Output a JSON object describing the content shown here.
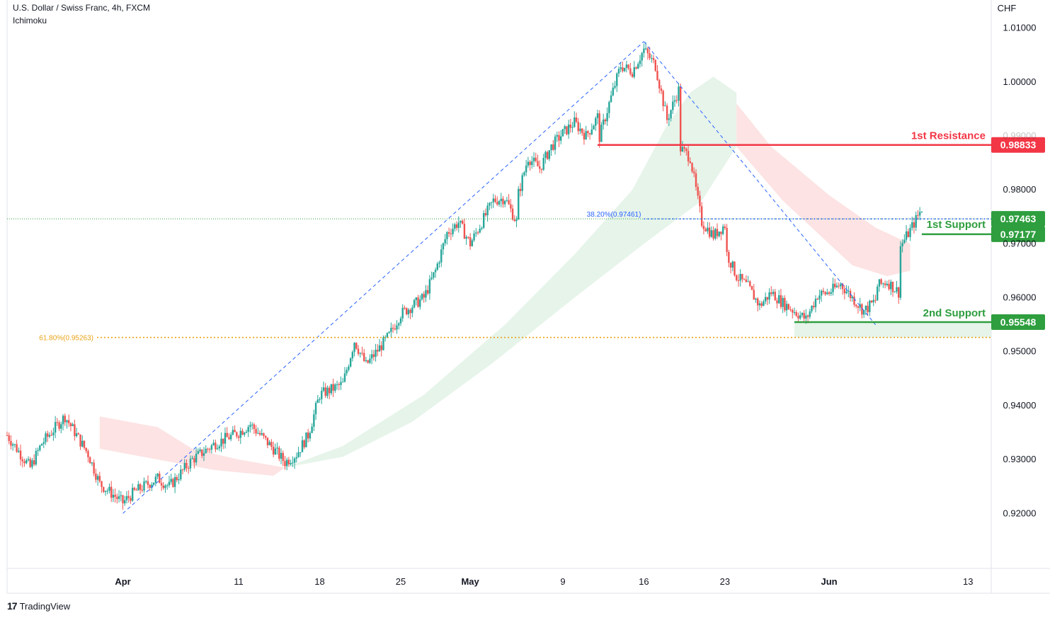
{
  "header": {
    "symbol_line": "U.S. Dollar / Swiss Franc, 4h, FXCM",
    "indicator": "Ichimoku"
  },
  "branding": {
    "logo": "17",
    "name": "TradingView"
  },
  "colors": {
    "up": "#26a69a",
    "down": "#ef5350",
    "resistance": "#f23645",
    "support": "#2e9e3e",
    "fib_blue": "#2962ff",
    "fib_orange": "#e8a317",
    "cloud_green": "#e6f4ea",
    "cloud_red": "#fde3e3"
  },
  "chart_data": {
    "type": "candlestick",
    "title": "U.S. Dollar / Swiss Franc, 4h, FXCM",
    "y_axis_label": "CHF",
    "ylim": [
      0.9098,
      1.0152
    ],
    "y_ticks": [
      "1.01000",
      "1.00000",
      "0.99000",
      "0.98000",
      "0.97000",
      "0.96000",
      "0.95000",
      "0.94000",
      "0.93000",
      "0.92000"
    ],
    "y_tick_values": [
      1.01,
      1.0,
      0.99,
      0.98,
      0.97,
      0.96,
      0.95,
      0.94,
      0.93,
      0.92
    ],
    "x_ticks": [
      "Apr",
      "11",
      "18",
      "25",
      "May",
      "9",
      "16",
      "23",
      "Jun",
      "13"
    ],
    "x_tick_dates": [
      "2022-04-01",
      "2022-04-11",
      "2022-04-18",
      "2022-04-25",
      "2022-05-01",
      "2022-05-09",
      "2022-05-16",
      "2022-05-23",
      "2022-06-01",
      "2022-06-13"
    ],
    "x_range": [
      "2022-03-22",
      "2022-06-15"
    ],
    "price_path": [
      [
        "2022-03-22",
        0.9345
      ],
      [
        "2022-03-24",
        0.9285
      ],
      [
        "2022-03-25",
        0.933
      ],
      [
        "2022-03-27",
        0.938
      ],
      [
        "2022-03-29",
        0.931
      ],
      [
        "2022-03-30",
        0.9255
      ],
      [
        "2022-04-01",
        0.922
      ],
      [
        "2022-04-02",
        0.924
      ],
      [
        "2022-04-04",
        0.9265
      ],
      [
        "2022-04-05",
        0.925
      ],
      [
        "2022-04-07",
        0.93
      ],
      [
        "2022-04-09",
        0.933
      ],
      [
        "2022-04-11",
        0.935
      ],
      [
        "2022-04-12",
        0.9365
      ],
      [
        "2022-04-14",
        0.932
      ],
      [
        "2022-04-15",
        0.9295
      ],
      [
        "2022-04-16",
        0.931
      ],
      [
        "2022-04-17",
        0.9345
      ],
      [
        "2022-04-18",
        0.942
      ],
      [
        "2022-04-20",
        0.944
      ],
      [
        "2022-04-21",
        0.952
      ],
      [
        "2022-04-22",
        0.9475
      ],
      [
        "2022-04-24",
        0.953
      ],
      [
        "2022-04-25",
        0.957
      ],
      [
        "2022-04-27",
        0.96
      ],
      [
        "2022-04-28",
        0.965
      ],
      [
        "2022-04-29",
        0.972
      ],
      [
        "2022-04-30",
        0.974
      ],
      [
        "2022-05-01",
        0.97
      ],
      [
        "2022-05-02",
        0.974
      ],
      [
        "2022-05-03",
        0.978
      ],
      [
        "2022-05-04",
        0.9785
      ],
      [
        "2022-05-05",
        0.974
      ],
      [
        "2022-05-05",
        0.978
      ],
      [
        "2022-05-06",
        0.986
      ],
      [
        "2022-05-07",
        0.984
      ],
      [
        "2022-05-08",
        0.988
      ],
      [
        "2022-05-09",
        0.9905
      ],
      [
        "2022-05-10",
        0.9925
      ],
      [
        "2022-05-11",
        0.99
      ],
      [
        "2022-05-12",
        0.9935
      ],
      [
        "2022-05-12",
        0.9885
      ],
      [
        "2022-05-13",
        0.996
      ],
      [
        "2022-05-14",
        1.003
      ],
      [
        "2022-05-15",
        1.002
      ],
      [
        "2022-05-16",
        1.006
      ],
      [
        "2022-05-17",
        1.003
      ],
      [
        "2022-05-18",
        0.993
      ],
      [
        "2022-05-19",
        0.9985
      ],
      [
        "2022-05-19",
        0.988
      ],
      [
        "2022-05-20",
        0.986
      ],
      [
        "2022-05-21",
        0.974
      ],
      [
        "2022-05-22",
        0.9715
      ],
      [
        "2022-05-23",
        0.9735
      ],
      [
        "2022-05-23",
        0.969
      ],
      [
        "2022-05-24",
        0.964
      ],
      [
        "2022-05-25",
        0.962
      ],
      [
        "2022-05-26",
        0.9585
      ],
      [
        "2022-05-27",
        0.961
      ],
      [
        "2022-05-28",
        0.959
      ],
      [
        "2022-05-29",
        0.9575
      ],
      [
        "2022-05-30",
        0.956
      ],
      [
        "2022-05-31",
        0.9605
      ],
      [
        "2022-06-01",
        0.961
      ],
      [
        "2022-06-02",
        0.9625
      ],
      [
        "2022-06-03",
        0.96
      ],
      [
        "2022-06-04",
        0.9575
      ],
      [
        "2022-06-05",
        0.9595
      ],
      [
        "2022-06-05",
        0.962
      ],
      [
        "2022-06-06",
        0.963
      ],
      [
        "2022-06-07",
        0.961
      ],
      [
        "2022-06-07",
        0.969
      ],
      [
        "2022-06-08",
        0.9725
      ],
      [
        "2022-06-09",
        0.9765
      ],
      [
        "2022-06-09",
        0.9735
      ]
    ],
    "levels": [
      {
        "name": "1st Resistance",
        "value": 0.98833,
        "label": "0.98833",
        "kind": "resistance",
        "from": "2022-05-12"
      },
      {
        "name": "1st Support",
        "value": 0.97177,
        "label": "0.97177",
        "kind": "support",
        "from": "2022-06-09"
      },
      {
        "name": "2nd Support",
        "value": 0.95548,
        "label": "0.95548",
        "kind": "support",
        "from": "2022-05-29"
      }
    ],
    "current_price": {
      "value": 0.97463,
      "label": "0.97463"
    },
    "fib_levels": [
      {
        "label": "38.20%(0.97461)",
        "value": 0.97461
      },
      {
        "label": "61.80%(0.95263)",
        "value": 0.95263
      }
    ],
    "trend_lines": [
      [
        [
          "2022-04-01",
          0.92
        ],
        [
          "2022-05-16",
          1.0075
        ]
      ],
      [
        [
          "2022-05-16",
          1.0075
        ],
        [
          "2022-06-05",
          0.955
        ]
      ]
    ],
    "cloud_green": [
      [
        "2022-04-15",
        0.9285
      ],
      [
        "2022-04-20",
        0.9325
      ],
      [
        "2022-04-27",
        0.942
      ],
      [
        "2022-05-04",
        0.955
      ],
      [
        "2022-05-10",
        0.968
      ],
      [
        "2022-05-15",
        0.98
      ],
      [
        "2022-05-18",
        0.992
      ],
      [
        "2022-05-20",
        0.998
      ],
      [
        "2022-05-22",
        1.001
      ],
      [
        "2022-05-24",
        0.998
      ],
      [
        "2022-05-24",
        0.988
      ],
      [
        "2022-05-21",
        0.978
      ],
      [
        "2022-05-16",
        0.97
      ],
      [
        "2022-05-10",
        0.96
      ],
      [
        "2022-05-03",
        0.948
      ],
      [
        "2022-04-26",
        0.937
      ],
      [
        "2022-04-20",
        0.9305
      ],
      [
        "2022-04-15",
        0.9285
      ]
    ],
    "cloud_red": [
      [
        "2022-03-30",
        0.938
      ],
      [
        "2022-04-04",
        0.936
      ],
      [
        "2022-04-07",
        0.932
      ],
      [
        "2022-04-11",
        0.93
      ],
      [
        "2022-04-15",
        0.9285
      ],
      [
        "2022-04-14",
        0.927
      ],
      [
        "2022-04-09",
        0.928
      ],
      [
        "2022-04-04",
        0.93
      ],
      [
        "2022-03-30",
        0.932
      ],
      [
        "2022-05-24",
        0.996
      ],
      [
        "2022-05-27",
        0.988
      ],
      [
        "2022-06-01",
        0.979
      ],
      [
        "2022-06-05",
        0.973
      ],
      [
        "2022-06-08",
        0.97
      ],
      [
        "2022-06-08",
        0.965
      ],
      [
        "2022-06-06",
        0.964
      ],
      [
        "2022-06-03",
        0.966
      ],
      [
        "2022-06-01",
        0.97
      ],
      [
        "2022-05-28",
        0.978
      ],
      [
        "2022-05-24",
        0.988
      ]
    ],
    "support_zone": {
      "from": "2022-05-29",
      "low": 0.95263,
      "high": 0.95548
    }
  }
}
